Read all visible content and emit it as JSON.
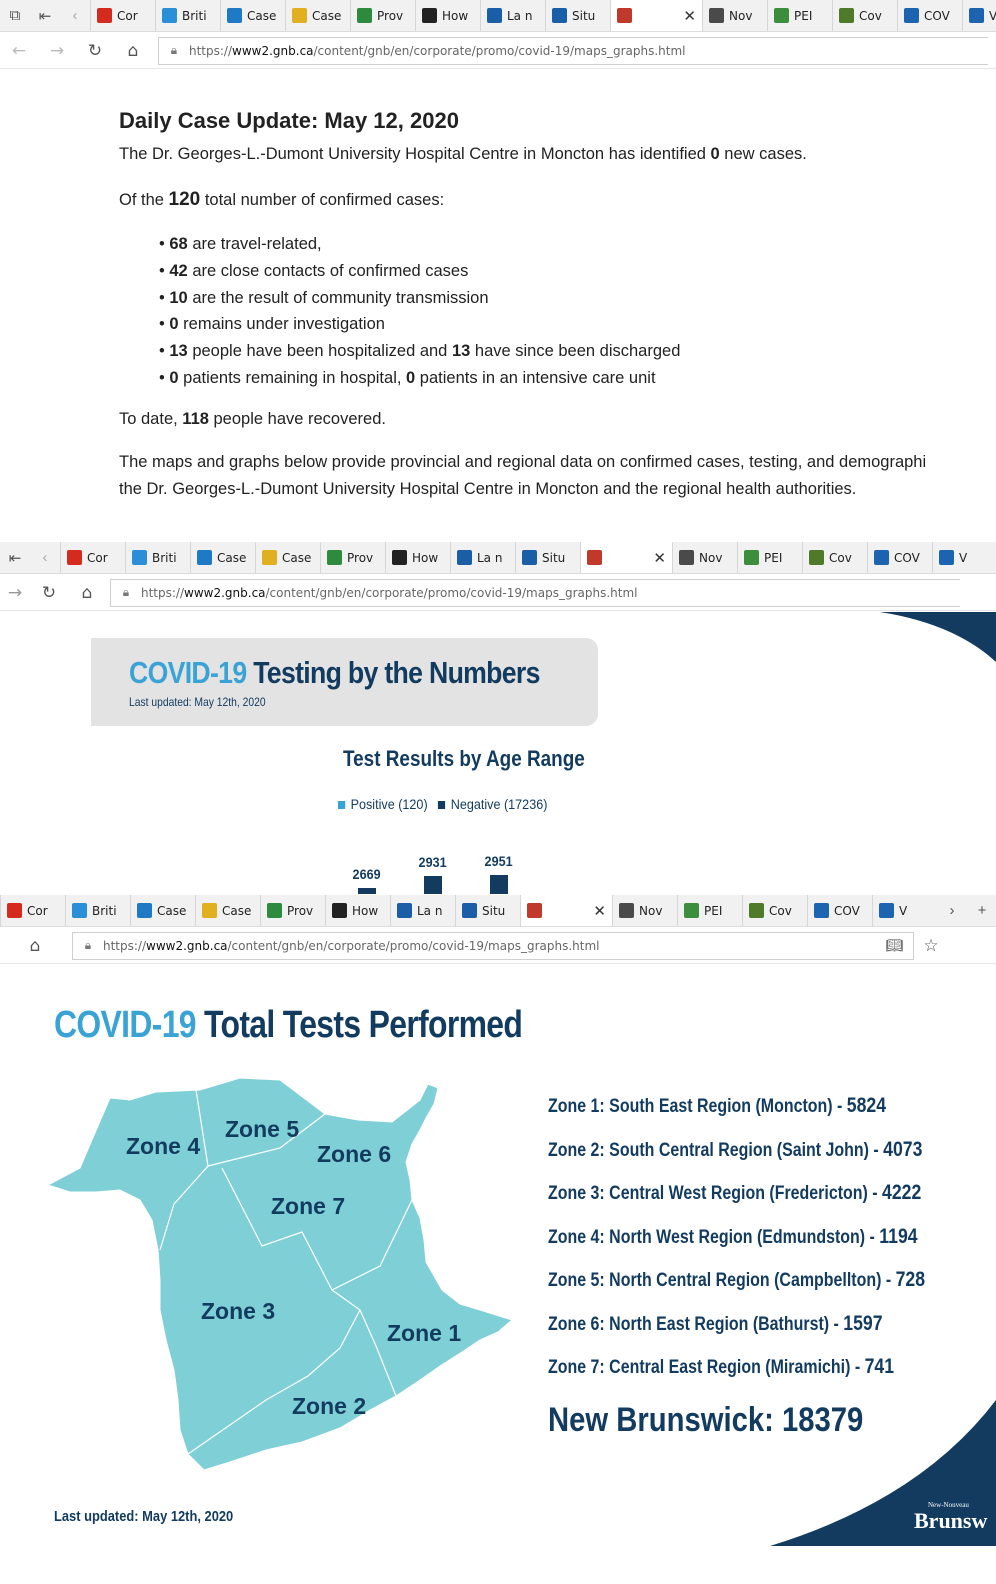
{
  "browser": {
    "tabs_1": [
      {
        "label": "Cor",
        "icon": "maple-leaf-icon",
        "color": "#d52b1e"
      },
      {
        "label": "Briti",
        "icon": "bc-icon",
        "color": "#2a8fd6"
      },
      {
        "label": "Case",
        "icon": "chart-icon",
        "color": "#1f7ac6"
      },
      {
        "label": "Case",
        "icon": "document-icon",
        "color": "#e0b020"
      },
      {
        "label": "Prov",
        "icon": "bar-icon",
        "color": "#2e8b3d"
      },
      {
        "label": "How",
        "icon": "shield-icon",
        "color": "#222222"
      },
      {
        "label": "La n",
        "icon": "fleur-icon",
        "color": "#1a5ea8"
      },
      {
        "label": "Situ",
        "icon": "fleur-icon",
        "color": "#1a5ea8"
      },
      {
        "label": "",
        "icon": "gnb-icon",
        "color": "#c0392b",
        "active": true
      },
      {
        "label": "Nov",
        "icon": "ns-icon",
        "color": "#4a4a4a"
      },
      {
        "label": "PEI",
        "icon": "pei-icon",
        "color": "#3c8d3c"
      },
      {
        "label": "Cov",
        "icon": "globe-icon",
        "color": "#4f7a2a"
      },
      {
        "label": "COV",
        "icon": "nl-icon",
        "color": "#1d64b0"
      },
      {
        "label": "V",
        "icon": "arch-icon",
        "color": "#1d64b0"
      }
    ],
    "tabs_2": [
      {
        "label": "Cor",
        "icon": "maple-leaf-icon",
        "color": "#d52b1e"
      },
      {
        "label": "Briti",
        "icon": "bc-icon",
        "color": "#2a8fd6"
      },
      {
        "label": "Case",
        "icon": "chart-icon",
        "color": "#1f7ac6"
      },
      {
        "label": "Case",
        "icon": "document-icon",
        "color": "#e0b020"
      },
      {
        "label": "Prov",
        "icon": "bar-icon",
        "color": "#2e8b3d"
      },
      {
        "label": "How",
        "icon": "shield-icon",
        "color": "#222222"
      },
      {
        "label": "La n",
        "icon": "fleur-icon",
        "color": "#1a5ea8"
      },
      {
        "label": "Situ",
        "icon": "fleur-icon",
        "color": "#1a5ea8"
      },
      {
        "label": "",
        "icon": "gnb-icon",
        "color": "#c0392b",
        "active": true
      },
      {
        "label": "Nov",
        "icon": "ns-icon",
        "color": "#4a4a4a"
      },
      {
        "label": "PEI",
        "icon": "pei-icon",
        "color": "#3c8d3c"
      },
      {
        "label": "Cov",
        "icon": "globe-icon",
        "color": "#4f7a2a"
      },
      {
        "label": "COV",
        "icon": "nl-icon",
        "color": "#1d64b0"
      },
      {
        "label": "V",
        "icon": "arch-icon",
        "color": "#1d64b0"
      }
    ],
    "tabs_3": [
      {
        "label": "Cor",
        "icon": "maple-leaf-icon",
        "color": "#d52b1e"
      },
      {
        "label": "Briti",
        "icon": "bc-icon",
        "color": "#2a8fd6"
      },
      {
        "label": "Case",
        "icon": "chart-icon",
        "color": "#1f7ac6"
      },
      {
        "label": "Case",
        "icon": "document-icon",
        "color": "#e0b020"
      },
      {
        "label": "Prov",
        "icon": "bar-icon",
        "color": "#2e8b3d"
      },
      {
        "label": "How",
        "icon": "shield-icon",
        "color": "#222222"
      },
      {
        "label": "La n",
        "icon": "fleur-icon",
        "color": "#1a5ea8"
      },
      {
        "label": "Situ",
        "icon": "fleur-icon",
        "color": "#1a5ea8"
      },
      {
        "label": "",
        "icon": "gnb-icon",
        "color": "#c0392b",
        "active": true
      },
      {
        "label": "Nov",
        "icon": "ns-icon",
        "color": "#4a4a4a"
      },
      {
        "label": "PEI",
        "icon": "pei-icon",
        "color": "#3c8d3c"
      },
      {
        "label": "Cov",
        "icon": "globe-icon",
        "color": "#4f7a2a"
      },
      {
        "label": "COV",
        "icon": "nl-icon",
        "color": "#1d64b0"
      },
      {
        "label": "V",
        "icon": "arch-icon",
        "color": "#1d64b0"
      }
    ],
    "url_prefix": "https://",
    "url_domain": "www2.gnb.ca",
    "url_path": "/content/gnb/en/corporate/promo/covid-19/maps_graphs.html"
  },
  "article": {
    "title": "Daily Case Update: May 12, 2020",
    "p1_before": "The Dr. Georges-L.-Dumont University Hospital Centre in Moncton has identified ",
    "p1_num": "0",
    "p1_after": " new cases.",
    "p2_before": "Of the ",
    "p2_num": "120",
    "p2_after": " total number of confirmed cases:",
    "bullets": [
      {
        "n1": "68",
        "t1": " are travel-related,",
        "n2": "",
        "t2": ""
      },
      {
        "n1": "42",
        "t1": " are close contacts of confirmed cases",
        "n2": "",
        "t2": ""
      },
      {
        "n1": "10",
        "t1": " are the result of community transmission",
        "n2": "",
        "t2": ""
      },
      {
        "n1": "0",
        "t1": " remains under investigation",
        "n2": "",
        "t2": ""
      },
      {
        "n1": "13",
        "t1": " people have been hospitalized and ",
        "n2": "13",
        "t2": " have since been discharged"
      },
      {
        "n1": "0",
        "t1": " patients remaining in hospital, ",
        "n2": "0",
        "t2": " patients in an intensive care unit"
      }
    ],
    "p3_before": "To date, ",
    "p3_num": "118",
    "p3_after": " people have recovered.",
    "p4": "The maps and graphs below provide provincial and regional data on confirmed cases, testing, and demographi",
    "p4b": "the Dr. Georges-L.-Dumont University Hospital Centre in Moncton and the regional health authorities."
  },
  "testing": {
    "title_a": "COVID-19",
    "title_b": " Testing by the Numbers",
    "updated": "Last updated: May 12th, 2020",
    "subhead": "Test Results by Age Range",
    "legend_positive": "Positive (120)",
    "legend_negative": "Negative (17236)",
    "colors": {
      "positive": "#3aa3d6",
      "negative": "#123b5f"
    }
  },
  "chart_data": {
    "type": "bar",
    "title": "Test Results by Age Range",
    "series": [
      {
        "name": "Negative (17236)",
        "values": [
          2669,
          2931,
          2951
        ]
      }
    ],
    "note": "partially visible: only the tops of three negative bars are shown"
  },
  "total_tests": {
    "title_a": "COVID-19",
    "title_b": " Total Tests Performed",
    "zones": [
      {
        "label": "Zone 1: South East Region (Moncton) - ",
        "value": "5824"
      },
      {
        "label": "Zone 2: South Central Region (Saint John) - ",
        "value": "4073"
      },
      {
        "label": "Zone 3: Central West Region (Fredericton) - ",
        "value": "4222"
      },
      {
        "label": "Zone 4: North West Region (Edmundston) - ",
        "value": "1194"
      },
      {
        "label": "Zone 5: North Central Region (Campbellton) - ",
        "value": "728"
      },
      {
        "label": "Zone 6: North East Region (Bathurst) - ",
        "value": "1597"
      },
      {
        "label": "Zone 7: Central East Region (Miramichi) - ",
        "value": "741"
      }
    ],
    "map_labels": [
      "Zone 1",
      "Zone 2",
      "Zone 3",
      "Zone 4",
      "Zone 5",
      "Zone 6",
      "Zone 7"
    ],
    "total": "New Brunswick: 18379",
    "updated": "Last updated: May 12th, 2020",
    "logo_small": "New-Nouveau",
    "logo_text": "Brunsw",
    "colors": {
      "map_fill": "#7fcfd6",
      "navy": "#123b5f",
      "accent": "#3aa3d6"
    }
  }
}
